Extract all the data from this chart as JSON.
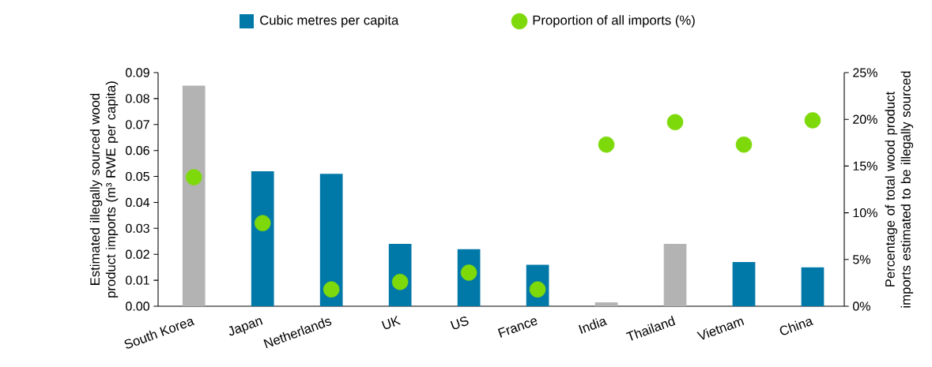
{
  "chart_data": {
    "type": "bar",
    "categories": [
      "South Korea",
      "Japan",
      "Netherlands",
      "UK",
      "US",
      "France",
      "India",
      "Thailand",
      "Vietnam",
      "China"
    ],
    "series": [
      {
        "name": "Cubic metres per capita",
        "color": "#0078a8",
        "colors": [
          "#b3b3b3",
          "#0078a8",
          "#0078a8",
          "#0078a8",
          "#0078a8",
          "#0078a8",
          "#b3b3b3",
          "#b3b3b3",
          "#0078a8",
          "#0078a8"
        ],
        "values": [
          0.085,
          0.052,
          0.051,
          0.024,
          0.022,
          0.016,
          0.0015,
          0.024,
          0.017,
          0.015
        ]
      },
      {
        "name": "Proportion of all imports (%)",
        "type": "scatter",
        "axis": "y2",
        "color": "#7ed90a",
        "values": [
          13.8,
          8.9,
          1.8,
          2.6,
          3.6,
          1.8,
          17.3,
          19.7,
          17.3,
          19.9
        ]
      }
    ],
    "ylabel": "Estimated illegally sourced wood product imports (m³ RWE per capita)",
    "y2label": "Percentage of total wood product imports estimated to be illegally sourced",
    "ylim": [
      0,
      0.09
    ],
    "yticks": [
      {
        "value": 0,
        "label": "0.00"
      },
      {
        "value": 0.01,
        "label": "0.01"
      },
      {
        "value": 0.02,
        "label": "0.02"
      },
      {
        "value": 0.03,
        "label": "0.03"
      },
      {
        "value": 0.04,
        "label": "0.04"
      },
      {
        "value": 0.05,
        "label": "0.05"
      },
      {
        "value": 0.06,
        "label": "0.06"
      },
      {
        "value": 0.07,
        "label": "0.07"
      },
      {
        "value": 0.08,
        "label": "0.08"
      },
      {
        "value": 0.09,
        "label": "0.09"
      }
    ],
    "y2lim": [
      0,
      25
    ],
    "y2ticks": [
      {
        "value": 0,
        "label": "0%"
      },
      {
        "value": 5,
        "label": "5%"
      },
      {
        "value": 10,
        "label": "10%"
      },
      {
        "value": 15,
        "label": "15%"
      },
      {
        "value": 20,
        "label": "20%"
      },
      {
        "value": 25,
        "label": "25%"
      }
    ],
    "marker": "circle",
    "legend": "top",
    "grid": false
  }
}
